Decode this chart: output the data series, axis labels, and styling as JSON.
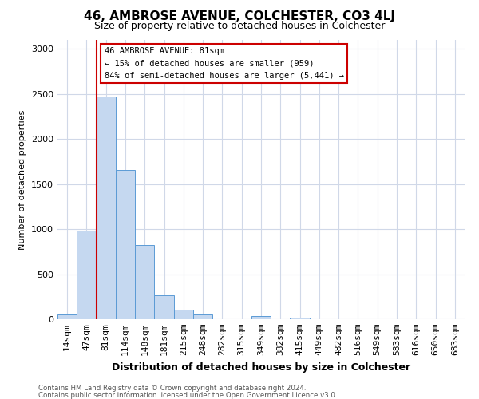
{
  "title": "46, AMBROSE AVENUE, COLCHESTER, CO3 4LJ",
  "subtitle": "Size of property relative to detached houses in Colchester",
  "xlabel": "Distribution of detached houses by size in Colchester",
  "ylabel": "Number of detached properties",
  "footnote1": "Contains HM Land Registry data © Crown copyright and database right 2024.",
  "footnote2": "Contains public sector information licensed under the Open Government Licence v3.0.",
  "annotation_title": "46 AMBROSE AVENUE: 81sqm",
  "annotation_line2": "← 15% of detached houses are smaller (959)",
  "annotation_line3": "84% of semi-detached houses are larger (5,441) →",
  "property_size": 81,
  "bar_color": "#c5d8f0",
  "bar_edge_color": "#5b9bd5",
  "vline_color": "#cc0000",
  "grid_color": "#d0d8e8",
  "tick_labels": [
    "14sqm",
    "47sqm",
    "81sqm",
    "114sqm",
    "148sqm",
    "181sqm",
    "215sqm",
    "248sqm",
    "282sqm",
    "315sqm",
    "349sqm",
    "382sqm",
    "415sqm",
    "449sqm",
    "482sqm",
    "516sqm",
    "549sqm",
    "583sqm",
    "616sqm",
    "650sqm",
    "683sqm"
  ],
  "bar_values": [
    50,
    980,
    2470,
    1660,
    820,
    270,
    110,
    50,
    0,
    0,
    35,
    0,
    20,
    0,
    0,
    0,
    0,
    0,
    0,
    0,
    0
  ],
  "ylim": [
    0,
    3100
  ],
  "yticks": [
    0,
    500,
    1000,
    1500,
    2000,
    2500,
    3000
  ],
  "annotation_box_color": "#ffffff",
  "annotation_box_edge": "#cc0000",
  "background_color": "#ffffff",
  "figsize": [
    6.0,
    5.0
  ],
  "dpi": 100
}
